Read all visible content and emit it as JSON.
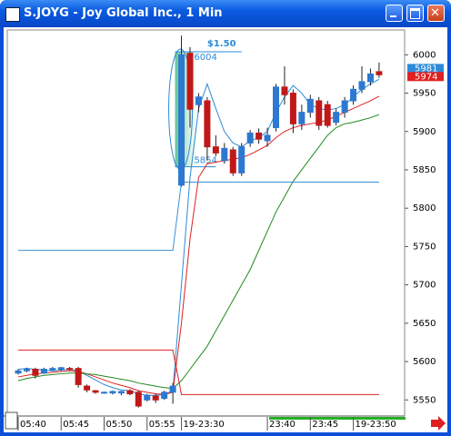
{
  "window": {
    "title": "S.JOYG - Joy Global Inc., 1 Min"
  },
  "chart_data": {
    "type": "candlestick",
    "categories": [
      "05:40",
      null,
      null,
      null,
      null,
      "05:45",
      null,
      null,
      null,
      null,
      "05:50",
      null,
      null,
      null,
      null,
      "05:55",
      null,
      null,
      null,
      "19-23:30",
      null,
      null,
      null,
      null,
      null,
      null,
      null,
      null,
      null,
      "23:40",
      null,
      null,
      null,
      null,
      "23:45",
      null,
      null,
      null,
      null,
      "19-23:50",
      null,
      null,
      null
    ],
    "open": [
      5585,
      5588,
      5590,
      5585,
      5589,
      5590,
      5591,
      5591,
      5568,
      5562,
      5560,
      5559,
      5559,
      5562,
      5560,
      5550,
      5555,
      5552,
      5560,
      5830,
      6002,
      5935,
      5940,
      5880,
      5862,
      5876,
      5846,
      5885,
      5898,
      5888,
      5905,
      5958,
      5950,
      5910,
      5925,
      5940,
      5935,
      5912,
      5925,
      5940,
      5955,
      5965,
      5978
    ],
    "high": [
      5590,
      5592,
      5592,
      5592,
      5593,
      5593,
      5593,
      5593,
      5570,
      5563,
      5561,
      5562,
      5562,
      5564,
      5562,
      5558,
      5558,
      5562,
      5572,
      6025,
      6010,
      5950,
      5945,
      5895,
      5885,
      5880,
      5885,
      5902,
      5904,
      5905,
      5962,
      5985,
      5955,
      5935,
      5948,
      5945,
      5940,
      5930,
      5945,
      5960,
      5985,
      5982,
      5990
    ],
    "low": [
      5583,
      5586,
      5578,
      5584,
      5588,
      5588,
      5588,
      5566,
      5560,
      5558,
      5558,
      5557,
      5556,
      5556,
      5540,
      5548,
      5546,
      5550,
      5545,
      5828,
      5905,
      5925,
      5862,
      5868,
      5858,
      5842,
      5842,
      5880,
      5884,
      5880,
      5900,
      5935,
      5898,
      5902,
      5918,
      5902,
      5905,
      5908,
      5918,
      5935,
      5950,
      5960,
      5970
    ],
    "close": [
      5588,
      5590,
      5582,
      5590,
      5591,
      5592,
      5590,
      5570,
      5563,
      5560,
      5560,
      5561,
      5561,
      5558,
      5542,
      5556,
      5550,
      5560,
      5568,
      6000,
      5929,
      5945,
      5880,
      5872,
      5878,
      5846,
      5880,
      5898,
      5890,
      5895,
      5958,
      5948,
      5910,
      5925,
      5942,
      5908,
      5908,
      5925,
      5940,
      5955,
      5965,
      5975,
      5974
    ],
    "up_color": "#2d78d0",
    "down_color": "#c01818",
    "series": [
      {
        "color": "#2d8ad8",
        "values": [
          5590,
          5591,
          5590,
          5589,
          5588,
          5589,
          5590,
          5588,
          5582,
          5576,
          5570,
          5566,
          5563,
          5562,
          5558,
          5556,
          5556,
          5557,
          5562,
          5700,
          5840,
          5930,
          5962,
          5930,
          5900,
          5885,
          5880,
          5888,
          5892,
          5900,
          5925,
          5945,
          5960,
          5950,
          5935,
          5930,
          5928,
          5930,
          5935,
          5945,
          5955,
          5962,
          5968
        ]
      },
      {
        "color": "#e02020",
        "values": [
          5580,
          5582,
          5584,
          5585,
          5586,
          5587,
          5588,
          5587,
          5584,
          5580,
          5576,
          5572,
          5569,
          5566,
          5562,
          5560,
          5558,
          5557,
          5560,
          5650,
          5760,
          5840,
          5858,
          5860,
          5862,
          5864,
          5866,
          5870,
          5876,
          5882,
          5892,
          5900,
          5905,
          5908,
          5910,
          5912,
          5915,
          5920,
          5925,
          5930,
          5935,
          5940,
          5946
        ]
      },
      {
        "color": "#1f8a1f",
        "values": [
          5575,
          5578,
          5580,
          5582,
          5583,
          5584,
          5585,
          5585,
          5584,
          5583,
          5581,
          5579,
          5577,
          5575,
          5572,
          5570,
          5568,
          5566,
          5565,
          5575,
          5590,
          5605,
          5620,
          5640,
          5660,
          5680,
          5700,
          5720,
          5745,
          5770,
          5795,
          5815,
          5835,
          5850,
          5865,
          5880,
          5895,
          5905,
          5910,
          5912,
          5915,
          5918,
          5922
        ]
      },
      {
        "color": "#3a90d8",
        "values": [
          5745,
          5745,
          5745,
          5745,
          5745,
          5745,
          5745,
          5745,
          5745,
          5745,
          5745,
          5745,
          5745,
          5745,
          5745,
          5745,
          5745,
          5745,
          5745,
          5834,
          5834,
          5834,
          5834,
          5834,
          5834,
          5834,
          5834,
          5834,
          5834,
          5834,
          5834,
          5834,
          5834,
          5834,
          5834,
          5834,
          5834,
          5834,
          5834,
          5834,
          5834,
          5834,
          5834
        ]
      },
      {
        "color": "#e02020",
        "values": [
          5615,
          5615,
          5615,
          5615,
          5615,
          5615,
          5615,
          5615,
          5615,
          5615,
          5615,
          5615,
          5615,
          5615,
          5615,
          5615,
          5615,
          5615,
          5615,
          5557,
          5557,
          5557,
          5557,
          5557,
          5557,
          5557,
          5557,
          5557,
          5557,
          5557,
          5557,
          5557,
          5557,
          5557,
          5557,
          5557,
          5557,
          5557,
          5557,
          5557,
          5557,
          5557,
          5557
        ]
      }
    ],
    "ylim": [
      5529,
      6030
    ],
    "yticks": [
      6000,
      5950,
      5900,
      5850,
      5800,
      5750,
      5700,
      5650,
      5600,
      5550
    ],
    "grid": false,
    "measure": {
      "label": "$1.50",
      "high": 6004,
      "low": 5854,
      "color": "#2d8ad8"
    },
    "price_tags": [
      {
        "value": 5981,
        "color": "#2d8ad8"
      },
      {
        "value": 5974,
        "color": "#e02020"
      }
    ]
  }
}
